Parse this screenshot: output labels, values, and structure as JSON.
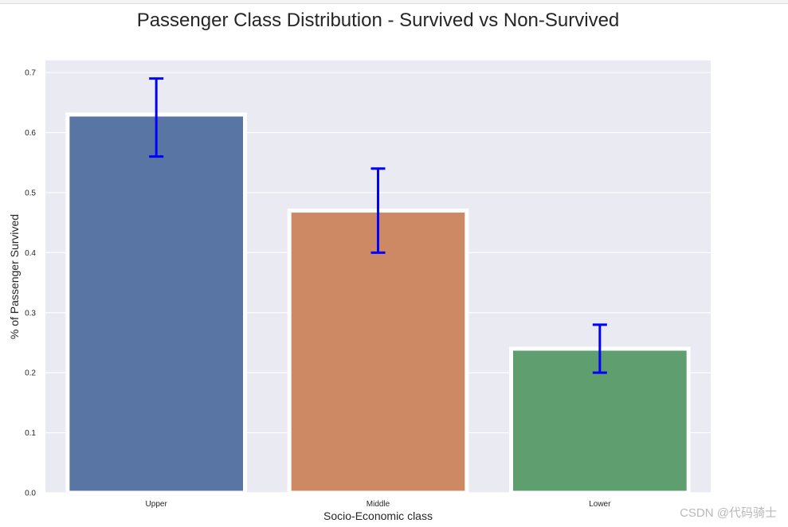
{
  "chart_data": {
    "type": "bar",
    "title": "Passenger Class Distribution - Survived vs Non-Survived",
    "xlabel": "Socio-Economic class",
    "ylabel": "% of Passenger Survived",
    "categories": [
      "Upper",
      "Middle",
      "Lower"
    ],
    "values": [
      0.63,
      0.47,
      0.24
    ],
    "error_bars": [
      {
        "low": 0.56,
        "high": 0.69
      },
      {
        "low": 0.4,
        "high": 0.54
      },
      {
        "low": 0.2,
        "high": 0.28
      }
    ],
    "ylim": [
      0,
      0.72
    ],
    "yticks": [
      "0.0",
      "0.1",
      "0.2",
      "0.3",
      "0.4",
      "0.5",
      "0.6",
      "0.7"
    ],
    "grid": true,
    "colors": {
      "background": "#eaeaf2",
      "grid": "#ffffff",
      "bars": [
        "#5975a4",
        "#cc8963",
        "#5f9e6e"
      ],
      "bar_edge": "#ffffff",
      "error_bar": "#0000ff"
    }
  },
  "watermark": "CSDN @代码骑士"
}
